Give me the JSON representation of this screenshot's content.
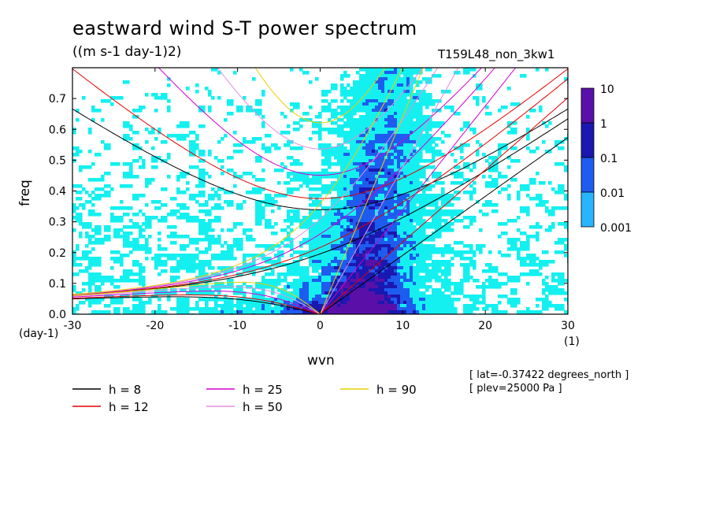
{
  "title": "eastward wind S-T power spectrum",
  "units": "((m s-1 day-1)2)",
  "run_name": "T159L48_non_3kw1",
  "x_unit_left": "(day-1)",
  "x_unit_right": "(1)",
  "annotations": [
    "[ lat=-0.37422 degrees_north ]",
    "[ plev=25000 Pa ]"
  ],
  "colorbar": {
    "levels": [
      "10",
      "1",
      "0.1",
      "0.01",
      "0.001"
    ],
    "colors": [
      "#5a10a8",
      "#1a18b0",
      "#1e5cf0",
      "#28b4ff",
      "#14f0f0"
    ]
  },
  "chart_data": {
    "type": "heatmap",
    "title": "eastward wind S-T power spectrum",
    "xlabel": "wvn",
    "ylabel": "freq",
    "xlim": [
      -30,
      30
    ],
    "ylim": [
      0,
      0.8
    ],
    "xticks": [
      "-30",
      "-20",
      "-10",
      "0",
      "10",
      "20",
      "30"
    ],
    "yticks": [
      "0.0",
      "0.1",
      "0.2",
      "0.3",
      "0.4",
      "0.5",
      "0.6",
      "0.7"
    ],
    "contour_levels": [
      0.001,
      0.01,
      0.1,
      1,
      10
    ],
    "series": [
      {
        "name": "h =  8",
        "color": "#000000",
        "h": 8
      },
      {
        "name": "h = 12",
        "color": "#e00000",
        "h": 12
      },
      {
        "name": "h = 25",
        "color": "#d000d0",
        "h": 25
      },
      {
        "name": "h = 50",
        "color": "#e090e0",
        "h": 50
      },
      {
        "name": "h = 90",
        "color": "#e8d000",
        "h": 90
      }
    ]
  }
}
